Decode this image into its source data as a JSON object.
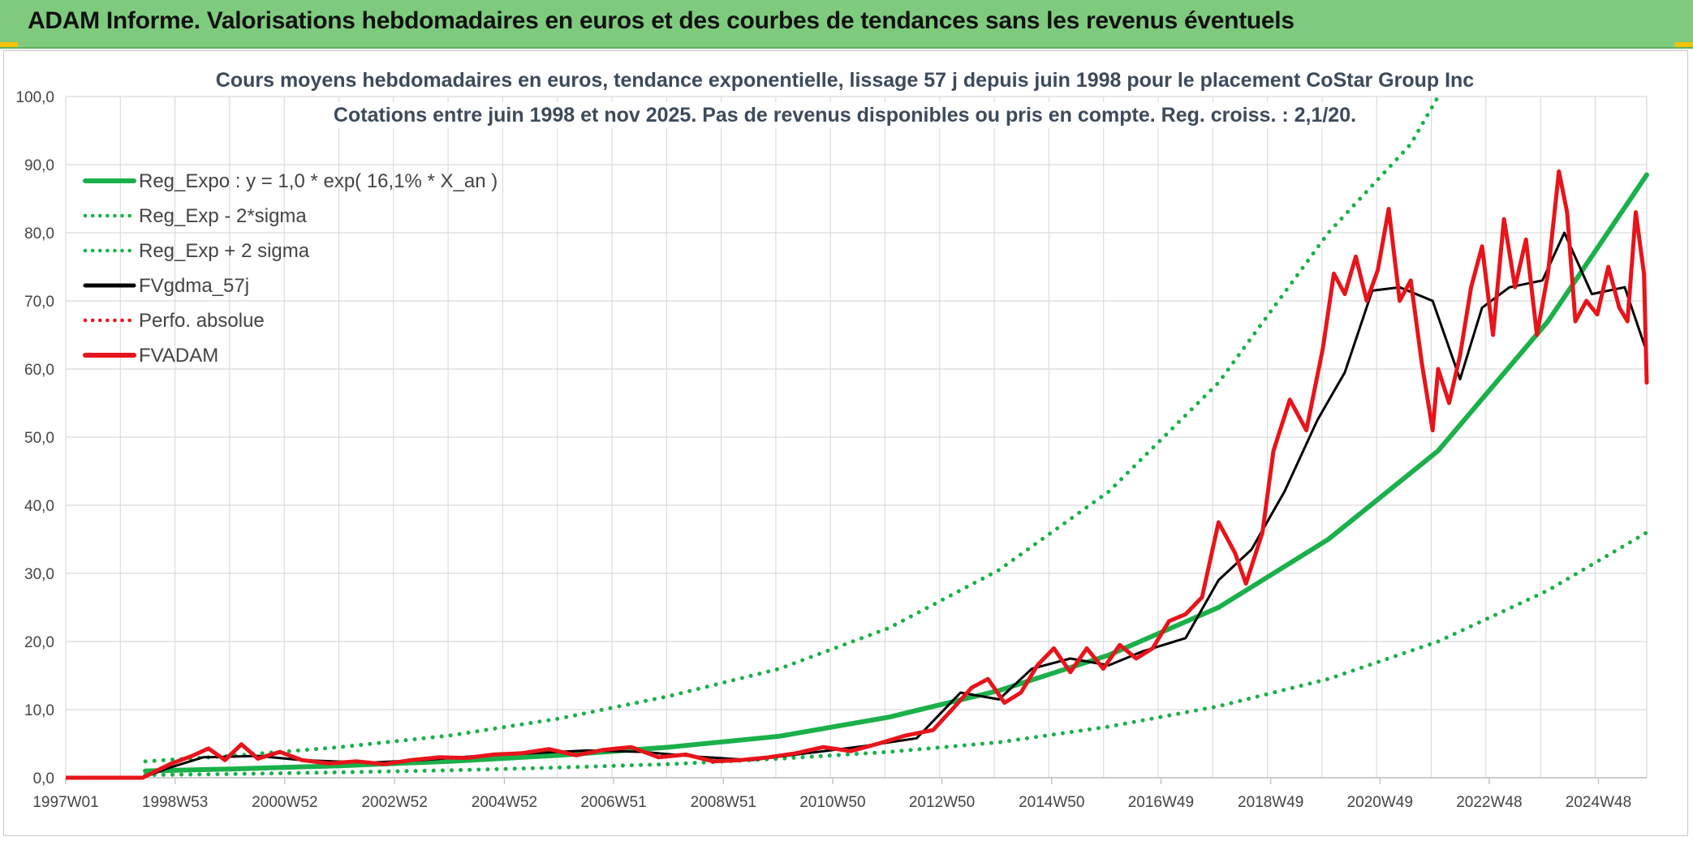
{
  "banner": {
    "title": "ADAM Informe. Valorisations hebdomadaires en euros et des courbes de tendances sans les revenus éventuels"
  },
  "colors": {
    "banner_bg": "#7ecb7e",
    "trend_green": "#1ab04a",
    "series_red": "#e8141b",
    "series_black": "#000000",
    "gridline": "#d9d9d9",
    "text_dark": "#444444"
  },
  "chart_data": {
    "type": "line",
    "title_lines": [
      "Cours moyens hebdomadaires en euros, tendance exponentielle, lissage 57 j depuis juin 1998 pour le placement CoStar Group Inc",
      "Cotations entre juin 1998 et nov 2025. Pas de revenus disponibles ou pris en compte. Reg. croiss. : 2,1/20."
    ],
    "xlabel": "",
    "ylabel": "",
    "x_range": [
      1997.0,
      2025.8
    ],
    "ylim": [
      0,
      100
    ],
    "y_ticks": [
      0,
      10,
      20,
      30,
      40,
      50,
      60,
      70,
      80,
      90,
      100
    ],
    "y_tick_labels": [
      "0,0",
      "10,0",
      "20,0",
      "30,0",
      "40,0",
      "50,0",
      "60,0",
      "70,0",
      "80,0",
      "90,0",
      "100,0"
    ],
    "x_ticks": [
      1997.0,
      1998.99,
      2000.99,
      2002.99,
      2004.99,
      2006.98,
      2008.98,
      2010.97,
      2012.96,
      2014.96,
      2016.95,
      2018.95,
      2020.94,
      2022.93,
      2024.92
    ],
    "x_tick_labels": [
      "1997W01",
      "1998W53",
      "2000W52",
      "2002W52",
      "2004W52",
      "2006W51",
      "2008W51",
      "2010W50",
      "2012W50",
      "2014W50",
      "2016W49",
      "2018W49",
      "2020W49",
      "2022W48",
      "2024W48"
    ],
    "grid": true,
    "legend_position": "top-left",
    "series": [
      {
        "name": "Reg_Expo : y = 1,0 * exp( 16,1% *  X_an )",
        "style": "solid",
        "color": "#1ab04a",
        "x": [
          1998.45,
          2000,
          2002,
          2004,
          2006,
          2008,
          2010,
          2012,
          2014,
          2016,
          2018,
          2020,
          2022,
          2024,
          2025.8
        ],
        "values": [
          1.0,
          1.28,
          1.76,
          2.42,
          3.3,
          4.5,
          6.1,
          8.9,
          12.8,
          18.0,
          25.0,
          35.0,
          48.0,
          67.0,
          88.5
        ]
      },
      {
        "name": "Reg_Exp - 2*sigma",
        "style": "dotted",
        "color": "#1ab04a",
        "x": [
          1998.45,
          2000,
          2002,
          2004,
          2006,
          2008,
          2010,
          2012,
          2014,
          2016,
          2018,
          2020,
          2022,
          2024,
          2025.8
        ],
        "values": [
          0.4,
          0.55,
          0.8,
          1.1,
          1.5,
          2.0,
          2.8,
          3.8,
          5.2,
          7.5,
          10.5,
          14.5,
          20.0,
          27.5,
          36.0
        ]
      },
      {
        "name": "Reg_Exp + 2 sigma",
        "style": "dotted",
        "color": "#1ab04a",
        "x": [
          1998.45,
          2000,
          2002,
          2004,
          2006,
          2008,
          2010,
          2012,
          2014,
          2016,
          2018,
          2020,
          2021.5,
          2022.0
        ],
        "values": [
          2.4,
          3.2,
          4.5,
          6.2,
          8.7,
          12.0,
          16.0,
          22.0,
          30.5,
          42.0,
          58.0,
          80.0,
          93.0,
          100.0
        ]
      },
      {
        "name": "FVgdma_57j",
        "style": "solid",
        "color": "#000000",
        "x": [
          1997.0,
          1998.4,
          1998.9,
          1999.5,
          2000.5,
          2001.3,
          2002.5,
          2003.5,
          2004.5,
          2005.5,
          2006.5,
          2007.5,
          2008.5,
          2009.5,
          2010.5,
          2011.5,
          2012.5,
          2013.3,
          2014.0,
          2014.6,
          2015.3,
          2016.0,
          2016.6,
          2017.4,
          2018.0,
          2018.6,
          2019.2,
          2019.8,
          2020.3,
          2020.8,
          2021.3,
          2021.9,
          2022.4,
          2022.8,
          2023.3,
          2023.9,
          2024.3,
          2024.8,
          2025.4,
          2025.8
        ],
        "values": [
          0,
          0,
          1.5,
          3.0,
          3.2,
          2.6,
          2.2,
          2.6,
          3.2,
          3.6,
          4.0,
          3.8,
          3.1,
          2.6,
          3.6,
          4.6,
          5.8,
          12.5,
          11.5,
          16.0,
          17.5,
          16.5,
          18.5,
          20.5,
          29.0,
          33.5,
          42.0,
          52.5,
          59.5,
          71.5,
          72.0,
          70.0,
          58.5,
          69.0,
          72.0,
          73.0,
          80.0,
          71.0,
          72.0,
          62.5
        ]
      },
      {
        "name": "Perfo. absolue",
        "style": "dotted",
        "color": "#e8141b",
        "x": [],
        "values": []
      },
      {
        "name": "FVADAM",
        "style": "solid",
        "color": "#e8141b",
        "x": [
          1997.0,
          1998.4,
          1998.6,
          1998.9,
          1999.3,
          1999.6,
          1999.9,
          2000.2,
          2000.5,
          2000.9,
          2001.3,
          2001.8,
          2002.3,
          2002.8,
          2003.3,
          2003.8,
          2004.3,
          2004.8,
          2005.3,
          2005.8,
          2006.3,
          2006.8,
          2007.3,
          2007.8,
          2008.3,
          2008.8,
          2009.3,
          2009.8,
          2010.3,
          2010.8,
          2011.3,
          2011.8,
          2012.3,
          2012.8,
          2013.2,
          2013.5,
          2013.8,
          2014.1,
          2014.4,
          2014.7,
          2015.0,
          2015.3,
          2015.6,
          2015.9,
          2016.2,
          2016.5,
          2016.8,
          2017.1,
          2017.4,
          2017.7,
          2018.0,
          2018.3,
          2018.5,
          2018.8,
          2019.0,
          2019.3,
          2019.6,
          2019.9,
          2020.1,
          2020.3,
          2020.5,
          2020.7,
          2020.9,
          2021.1,
          2021.3,
          2021.5,
          2021.7,
          2021.9,
          2022.0,
          2022.2,
          2022.4,
          2022.6,
          2022.8,
          2023.0,
          2023.2,
          2023.4,
          2023.6,
          2023.8,
          2024.0,
          2024.2,
          2024.35,
          2024.5,
          2024.7,
          2024.9,
          2025.1,
          2025.3,
          2025.45,
          2025.6,
          2025.75,
          2025.8
        ],
        "values": [
          0,
          0,
          0.8,
          2.0,
          3.2,
          4.3,
          2.6,
          4.9,
          2.8,
          3.8,
          2.6,
          2.1,
          2.4,
          2.0,
          2.6,
          3.0,
          2.9,
          3.4,
          3.6,
          4.2,
          3.3,
          4.1,
          4.5,
          3.0,
          3.4,
          2.4,
          2.6,
          3.0,
          3.6,
          4.5,
          3.9,
          5.0,
          6.2,
          7.0,
          10.5,
          13.2,
          14.5,
          11.0,
          12.5,
          16.5,
          19.0,
          15.5,
          19.0,
          16.0,
          19.5,
          17.5,
          19.0,
          23.0,
          24.0,
          26.5,
          37.5,
          33.0,
          28.5,
          36.0,
          48.0,
          55.5,
          51.0,
          63.0,
          74.0,
          71.0,
          76.5,
          70.0,
          74.5,
          83.5,
          70.0,
          73.0,
          61.0,
          51.0,
          60.0,
          55.0,
          62.0,
          72.0,
          78.0,
          65.0,
          82.0,
          72.0,
          79.0,
          65.0,
          74.0,
          89.0,
          83.0,
          67.0,
          70.0,
          68.0,
          75.0,
          69.0,
          67.0,
          83.0,
          74.0,
          58.0
        ]
      }
    ]
  }
}
